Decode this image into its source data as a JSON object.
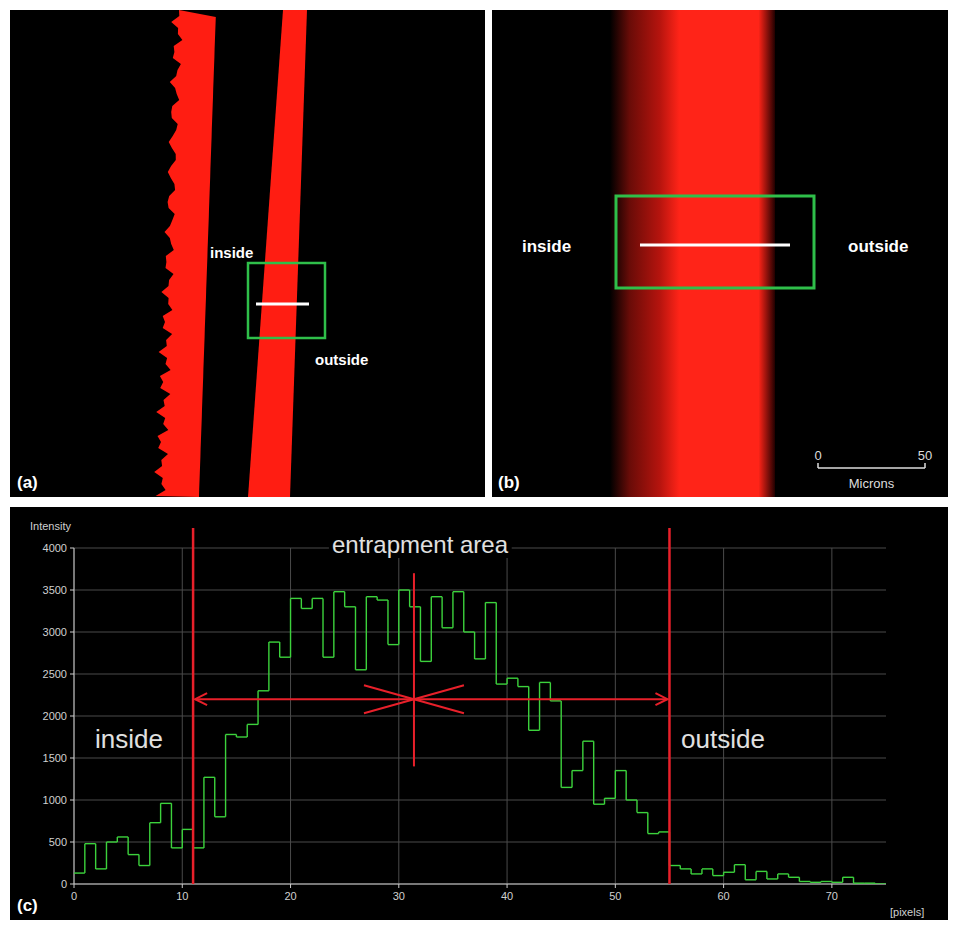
{
  "panels": [
    {
      "label": "(a)",
      "inside": "inside",
      "outside": "outside"
    },
    {
      "label": "(b)",
      "inside": "inside",
      "outside": "outside",
      "scale_bar": {
        "ticks": [
          0,
          50
        ],
        "unit": "Microns"
      }
    }
  ],
  "chart_data": {
    "type": "histogram",
    "panel_label": "(c)",
    "y_label": "Intensity",
    "x_label": "[pixels]",
    "bins": [
      0,
      1,
      2,
      3,
      4,
      5,
      6,
      7,
      8,
      9,
      10,
      11,
      12,
      13,
      14,
      15,
      16,
      17,
      18,
      19,
      20,
      21,
      22,
      23,
      24,
      25,
      26,
      27,
      28,
      29,
      30,
      31,
      32,
      33,
      34,
      35,
      36,
      37,
      38,
      39,
      40,
      41,
      42,
      43,
      44,
      45,
      46,
      47,
      48,
      49,
      50,
      51,
      52,
      53,
      54,
      55,
      56,
      57,
      58,
      59,
      60,
      61,
      62,
      63,
      64,
      65,
      66,
      67,
      68,
      69,
      70,
      71,
      72,
      73,
      74,
      75
    ],
    "values": [
      130,
      480,
      180,
      500,
      560,
      350,
      220,
      730,
      960,
      430,
      650,
      430,
      1270,
      800,
      1780,
      1750,
      1900,
      2300,
      2880,
      2700,
      3400,
      3280,
      3400,
      2700,
      3480,
      3300,
      2550,
      3420,
      3380,
      2850,
      3500,
      3300,
      2650,
      3420,
      3050,
      3480,
      3000,
      2680,
      3350,
      2380,
      2450,
      2350,
      1830,
      2400,
      2180,
      1150,
      1350,
      1700,
      950,
      1020,
      1350,
      1000,
      850,
      600,
      620,
      220,
      180,
      120,
      180,
      100,
      140,
      230,
      50,
      150,
      60,
      120,
      80,
      30,
      20,
      30,
      20,
      80,
      10,
      10,
      0
    ],
    "color": "#3cd23c",
    "line_style": "step",
    "xlim": [
      0,
      75
    ],
    "xticks": [
      0,
      10,
      20,
      30,
      40,
      50,
      60,
      70
    ],
    "ylim": [
      0,
      4000
    ],
    "yticks": [
      0,
      500,
      1000,
      1500,
      2000,
      2500,
      3000,
      3500,
      4000
    ],
    "grid": true,
    "annotations": {
      "text": "entrapment area",
      "bounds": [
        11,
        55
      ],
      "center": 31.4,
      "level": 2200,
      "center_range": [
        1400,
        3700
      ],
      "color": "#e8202a"
    },
    "region_labels": [
      "inside",
      "outside"
    ]
  }
}
